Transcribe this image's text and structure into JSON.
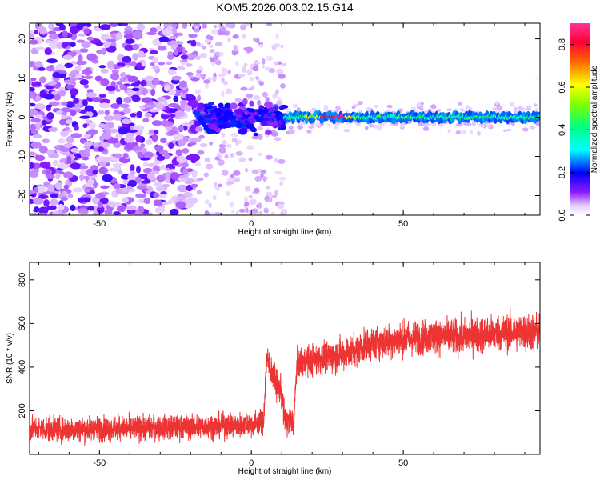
{
  "title": "KOM5.2026.003.02.15.G14",
  "chart_data": [
    {
      "type": "heatmap",
      "xlabel": "Height of straight line (km)",
      "ylabel": "Frequency (Hz)",
      "xlim": [
        -73,
        95
      ],
      "ylim": [
        -25,
        24
      ],
      "xticks": [
        -50,
        0,
        50
      ],
      "yticks": [
        -20,
        -10,
        0,
        10,
        20
      ],
      "grid": false,
      "colorbar": {
        "label": "Normalized spectral amplitude",
        "range": [
          0.0,
          0.9
        ],
        "ticks": [
          0.0,
          0.2,
          0.4,
          0.6,
          0.8
        ],
        "colormap": "rainbow (white-violet-blue-cyan-green-yellow-red-magenta)"
      },
      "description_regions": [
        {
          "x_range": [
            -73,
            -18
          ],
          "freq_range": [
            -25,
            24
          ],
          "amplitude": "low (0.05-0.15), scattered noise"
        },
        {
          "x_range": [
            -18,
            11
          ],
          "freq_range": [
            -7,
            8
          ],
          "amplitude": "low-moderate (0.1-0.25), cluster"
        },
        {
          "x_range": [
            -18,
            11
          ],
          "freq_range": [
            -25,
            24
          ],
          "amplitude": "very low, scattered"
        },
        {
          "x_range": [
            11,
            95
          ],
          "freq_range": [
            -2,
            2
          ],
          "amplitude": "narrow carrier line 0.3-0.6, peaks ~0.9 at 23-30 km"
        }
      ]
    },
    {
      "type": "line",
      "xlabel": "Height of straight line (km)",
      "ylabel": "SNR (10 * v/v)",
      "xlim": [
        -73,
        95
      ],
      "ylim": [
        0,
        880
      ],
      "xticks": [
        -50,
        0,
        50
      ],
      "yticks": [
        200,
        400,
        600,
        800
      ],
      "grid": false,
      "series": [
        {
          "color": "#ee3333",
          "profile_x": [
            -73,
            -60,
            -40,
            -20,
            -5,
            0,
            4,
            5,
            8,
            10,
            11,
            14,
            15,
            20,
            30,
            40,
            50,
            60,
            70,
            80,
            90,
            95
          ],
          "profile_mean": [
            120,
            115,
            120,
            125,
            135,
            140,
            150,
            440,
            330,
            280,
            150,
            150,
            420,
            430,
            460,
            510,
            530,
            540,
            540,
            555,
            560,
            560
          ],
          "profile_spread": [
            75,
            75,
            75,
            75,
            75,
            75,
            75,
            90,
            90,
            90,
            90,
            90,
            95,
            95,
            100,
            100,
            105,
            105,
            110,
            110,
            115,
            115
          ]
        }
      ]
    }
  ]
}
